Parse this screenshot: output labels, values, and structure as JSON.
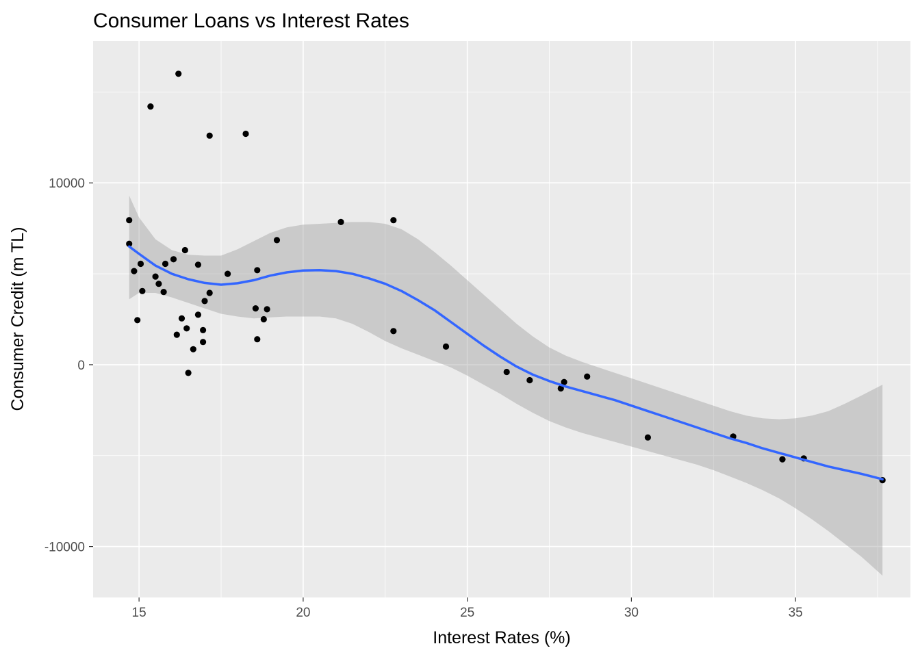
{
  "chart_data": {
    "type": "scatter",
    "title": "Consumer Loans vs Interest Rates",
    "xlabel": "Interest Rates (%)",
    "ylabel": "Consumer Credit (m TL)",
    "xlim": [
      13.6,
      38.5
    ],
    "ylim": [
      -12800,
      17800
    ],
    "x_ticks": [
      15,
      20,
      25,
      30,
      35
    ],
    "x_tick_labels": [
      "15",
      "20",
      "25",
      "30",
      "35"
    ],
    "x_minor_ticks": [
      17.5,
      22.5,
      27.5,
      32.5,
      37.5
    ],
    "y_ticks": [
      -10000,
      0,
      10000
    ],
    "y_tick_labels": [
      "-10000",
      "0",
      "10000"
    ],
    "y_minor_ticks": [
      -5000,
      5000,
      15000
    ],
    "grid": true,
    "colors": {
      "panel": "#ebebeb",
      "grid": "#ffffff",
      "point": "#000000",
      "smooth_line": "#3366ff",
      "ribbon": "#999999"
    },
    "points": [
      {
        "x": 16.2,
        "y": 16000
      },
      {
        "x": 15.35,
        "y": 14200
      },
      {
        "x": 17.15,
        "y": 12600
      },
      {
        "x": 18.25,
        "y": 12700
      },
      {
        "x": 14.7,
        "y": 7950
      },
      {
        "x": 14.7,
        "y": 6650
      },
      {
        "x": 21.15,
        "y": 7850
      },
      {
        "x": 22.75,
        "y": 7950
      },
      {
        "x": 19.2,
        "y": 6850
      },
      {
        "x": 16.4,
        "y": 6300
      },
      {
        "x": 16.05,
        "y": 5800
      },
      {
        "x": 15.8,
        "y": 5550
      },
      {
        "x": 15.05,
        "y": 5550
      },
      {
        "x": 16.8,
        "y": 5500
      },
      {
        "x": 14.85,
        "y": 5150
      },
      {
        "x": 18.6,
        "y": 5200
      },
      {
        "x": 17.7,
        "y": 5000
      },
      {
        "x": 15.5,
        "y": 4850
      },
      {
        "x": 15.6,
        "y": 4450
      },
      {
        "x": 15.1,
        "y": 4050
      },
      {
        "x": 15.75,
        "y": 4000
      },
      {
        "x": 17.15,
        "y": 3950
      },
      {
        "x": 17.0,
        "y": 3500
      },
      {
        "x": 18.55,
        "y": 3100
      },
      {
        "x": 18.9,
        "y": 3050
      },
      {
        "x": 16.8,
        "y": 2750
      },
      {
        "x": 16.3,
        "y": 2550
      },
      {
        "x": 14.95,
        "y": 2450
      },
      {
        "x": 18.8,
        "y": 2500
      },
      {
        "x": 16.45,
        "y": 2000
      },
      {
        "x": 16.95,
        "y": 1900
      },
      {
        "x": 22.75,
        "y": 1850
      },
      {
        "x": 16.15,
        "y": 1650
      },
      {
        "x": 18.6,
        "y": 1400
      },
      {
        "x": 16.95,
        "y": 1250
      },
      {
        "x": 24.35,
        "y": 1000
      },
      {
        "x": 16.65,
        "y": 850
      },
      {
        "x": 16.5,
        "y": -450
      },
      {
        "x": 26.2,
        "y": -400
      },
      {
        "x": 26.9,
        "y": -850
      },
      {
        "x": 27.95,
        "y": -950
      },
      {
        "x": 27.85,
        "y": -1300
      },
      {
        "x": 28.65,
        "y": -650
      },
      {
        "x": 30.5,
        "y": -4000
      },
      {
        "x": 33.1,
        "y": -3950
      },
      {
        "x": 34.6,
        "y": -5200
      },
      {
        "x": 35.25,
        "y": -5150
      },
      {
        "x": 37.65,
        "y": -6350
      }
    ],
    "smooth_line": [
      {
        "x": 14.7,
        "y": 6500
      },
      {
        "x": 15.0,
        "y": 6100
      },
      {
        "x": 15.5,
        "y": 5450
      },
      {
        "x": 16.0,
        "y": 5000
      },
      {
        "x": 16.5,
        "y": 4700
      },
      {
        "x": 17.0,
        "y": 4500
      },
      {
        "x": 17.5,
        "y": 4400
      },
      {
        "x": 18.0,
        "y": 4480
      },
      {
        "x": 18.5,
        "y": 4650
      },
      {
        "x": 19.0,
        "y": 4900
      },
      {
        "x": 19.5,
        "y": 5080
      },
      {
        "x": 20.0,
        "y": 5180
      },
      {
        "x": 20.5,
        "y": 5200
      },
      {
        "x": 21.0,
        "y": 5150
      },
      {
        "x": 21.5,
        "y": 5000
      },
      {
        "x": 22.0,
        "y": 4750
      },
      {
        "x": 22.5,
        "y": 4450
      },
      {
        "x": 23.0,
        "y": 4050
      },
      {
        "x": 23.5,
        "y": 3550
      },
      {
        "x": 24.0,
        "y": 3000
      },
      {
        "x": 24.5,
        "y": 2350
      },
      {
        "x": 25.0,
        "y": 1700
      },
      {
        "x": 25.5,
        "y": 1050
      },
      {
        "x": 26.0,
        "y": 450
      },
      {
        "x": 26.5,
        "y": -100
      },
      {
        "x": 27.0,
        "y": -550
      },
      {
        "x": 27.5,
        "y": -900
      },
      {
        "x": 28.0,
        "y": -1200
      },
      {
        "x": 28.5,
        "y": -1450
      },
      {
        "x": 29.0,
        "y": -1700
      },
      {
        "x": 29.5,
        "y": -1950
      },
      {
        "x": 30.0,
        "y": -2250
      },
      {
        "x": 30.5,
        "y": -2550
      },
      {
        "x": 31.0,
        "y": -2850
      },
      {
        "x": 31.5,
        "y": -3150
      },
      {
        "x": 32.0,
        "y": -3450
      },
      {
        "x": 32.5,
        "y": -3750
      },
      {
        "x": 33.0,
        "y": -4050
      },
      {
        "x": 33.5,
        "y": -4300
      },
      {
        "x": 34.0,
        "y": -4600
      },
      {
        "x": 34.5,
        "y": -4850
      },
      {
        "x": 35.0,
        "y": -5100
      },
      {
        "x": 35.5,
        "y": -5350
      },
      {
        "x": 36.0,
        "y": -5600
      },
      {
        "x": 36.5,
        "y": -5800
      },
      {
        "x": 37.0,
        "y": -6000
      },
      {
        "x": 37.65,
        "y": -6300
      }
    ],
    "ribbon_upper": [
      {
        "x": 14.7,
        "y": 9300
      },
      {
        "x": 15.0,
        "y": 8100
      },
      {
        "x": 15.5,
        "y": 6900
      },
      {
        "x": 16.0,
        "y": 6300
      },
      {
        "x": 16.5,
        "y": 6050
      },
      {
        "x": 17.0,
        "y": 6000
      },
      {
        "x": 17.5,
        "y": 6000
      },
      {
        "x": 18.0,
        "y": 6350
      },
      {
        "x": 18.5,
        "y": 6800
      },
      {
        "x": 19.0,
        "y": 7250
      },
      {
        "x": 19.5,
        "y": 7550
      },
      {
        "x": 20.0,
        "y": 7700
      },
      {
        "x": 20.5,
        "y": 7750
      },
      {
        "x": 21.0,
        "y": 7800
      },
      {
        "x": 21.5,
        "y": 7850
      },
      {
        "x": 22.0,
        "y": 7850
      },
      {
        "x": 22.5,
        "y": 7750
      },
      {
        "x": 23.0,
        "y": 7450
      },
      {
        "x": 23.5,
        "y": 6900
      },
      {
        "x": 24.0,
        "y": 6200
      },
      {
        "x": 24.5,
        "y": 5450
      },
      {
        "x": 25.0,
        "y": 4650
      },
      {
        "x": 25.5,
        "y": 3850
      },
      {
        "x": 26.0,
        "y": 3050
      },
      {
        "x": 26.5,
        "y": 2250
      },
      {
        "x": 27.0,
        "y": 1550
      },
      {
        "x": 27.5,
        "y": 950
      },
      {
        "x": 28.0,
        "y": 500
      },
      {
        "x": 28.5,
        "y": 150
      },
      {
        "x": 29.0,
        "y": -150
      },
      {
        "x": 29.5,
        "y": -450
      },
      {
        "x": 30.0,
        "y": -750
      },
      {
        "x": 30.5,
        "y": -1050
      },
      {
        "x": 31.0,
        "y": -1350
      },
      {
        "x": 31.5,
        "y": -1650
      },
      {
        "x": 32.0,
        "y": -1950
      },
      {
        "x": 32.5,
        "y": -2250
      },
      {
        "x": 33.0,
        "y": -2550
      },
      {
        "x": 33.5,
        "y": -2800
      },
      {
        "x": 34.0,
        "y": -2950
      },
      {
        "x": 34.5,
        "y": -3000
      },
      {
        "x": 35.0,
        "y": -2950
      },
      {
        "x": 35.5,
        "y": -2800
      },
      {
        "x": 36.0,
        "y": -2550
      },
      {
        "x": 36.5,
        "y": -2150
      },
      {
        "x": 37.0,
        "y": -1700
      },
      {
        "x": 37.65,
        "y": -1100
      }
    ],
    "ribbon_lower": [
      {
        "x": 14.7,
        "y": 3600
      },
      {
        "x": 15.0,
        "y": 3950
      },
      {
        "x": 15.5,
        "y": 3950
      },
      {
        "x": 16.0,
        "y": 3700
      },
      {
        "x": 16.5,
        "y": 3400
      },
      {
        "x": 17.0,
        "y": 3100
      },
      {
        "x": 17.5,
        "y": 2800
      },
      {
        "x": 18.0,
        "y": 2650
      },
      {
        "x": 18.5,
        "y": 2550
      },
      {
        "x": 19.0,
        "y": 2600
      },
      {
        "x": 19.5,
        "y": 2650
      },
      {
        "x": 20.0,
        "y": 2650
      },
      {
        "x": 20.5,
        "y": 2650
      },
      {
        "x": 21.0,
        "y": 2550
      },
      {
        "x": 21.5,
        "y": 2250
      },
      {
        "x": 22.0,
        "y": 1800
      },
      {
        "x": 22.5,
        "y": 1300
      },
      {
        "x": 23.0,
        "y": 900
      },
      {
        "x": 23.5,
        "y": 550
      },
      {
        "x": 24.0,
        "y": 200
      },
      {
        "x": 24.5,
        "y": -150
      },
      {
        "x": 25.0,
        "y": -600
      },
      {
        "x": 25.5,
        "y": -1100
      },
      {
        "x": 26.0,
        "y": -1600
      },
      {
        "x": 26.5,
        "y": -2150
      },
      {
        "x": 27.0,
        "y": -2650
      },
      {
        "x": 27.5,
        "y": -3100
      },
      {
        "x": 28.0,
        "y": -3450
      },
      {
        "x": 28.5,
        "y": -3750
      },
      {
        "x": 29.0,
        "y": -4000
      },
      {
        "x": 29.5,
        "y": -4250
      },
      {
        "x": 30.0,
        "y": -4500
      },
      {
        "x": 30.5,
        "y": -4750
      },
      {
        "x": 31.0,
        "y": -5000
      },
      {
        "x": 31.5,
        "y": -5250
      },
      {
        "x": 32.0,
        "y": -5500
      },
      {
        "x": 32.5,
        "y": -5800
      },
      {
        "x": 33.0,
        "y": -6150
      },
      {
        "x": 33.5,
        "y": -6500
      },
      {
        "x": 34.0,
        "y": -6900
      },
      {
        "x": 34.5,
        "y": -7350
      },
      {
        "x": 35.0,
        "y": -7900
      },
      {
        "x": 35.5,
        "y": -8500
      },
      {
        "x": 36.0,
        "y": -9150
      },
      {
        "x": 36.5,
        "y": -9850
      },
      {
        "x": 37.0,
        "y": -10550
      },
      {
        "x": 37.65,
        "y": -11600
      }
    ]
  }
}
